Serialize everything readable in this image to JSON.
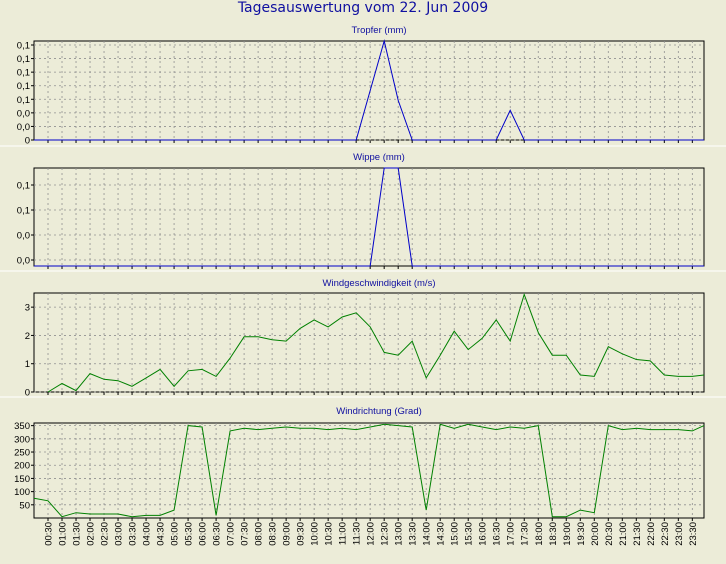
{
  "page": {
    "title": "Tagesauswertung vom 22. Jun 2009",
    "colors": {
      "background": "#ececd8",
      "title": "#1010a0",
      "rain": "#0000c8",
      "wind": "#008000"
    }
  },
  "chart_data": [
    {
      "type": "line",
      "title": "Tropfer (mm)",
      "ytick_labels": [
        "0,1",
        "0,1",
        "0,1",
        "0,1",
        "0,1",
        "0,0",
        "0,0",
        "0"
      ],
      "ylim": [
        0,
        7
      ],
      "grid": true,
      "x_ticks": [
        "00:30",
        "01:00",
        "01:30",
        "02:00",
        "02:30",
        "03:00",
        "03:30",
        "04:00",
        "04:30",
        "05:00",
        "05:30",
        "06:00",
        "06:30",
        "07:00",
        "07:30",
        "08:00",
        "08:30",
        "09:00",
        "09:30",
        "10:00",
        "10:30",
        "11:00",
        "11:30",
        "12:00",
        "12:30",
        "13:00",
        "13:30",
        "14:00",
        "14:30",
        "15:00",
        "15:30",
        "16:00",
        "16:30",
        "17:00",
        "17:30",
        "18:00",
        "18:30",
        "19:00",
        "19:30",
        "20:00",
        "20:30",
        "21:00",
        "21:30",
        "22:00",
        "22:30",
        "23:00",
        "23:30"
      ],
      "series": [
        {
          "color": "#0000c8",
          "x": [
            "00:00",
            "11:30",
            "12:00",
            "12:30",
            "13:00",
            "13:30",
            "16:30",
            "17:00",
            "17:30",
            "23:55"
          ],
          "y": [
            0,
            0,
            3.5,
            7,
            2.8,
            0,
            0,
            2.1,
            0,
            0
          ]
        }
      ]
    },
    {
      "type": "line",
      "title": "Wippe (mm)",
      "ytick_labels": [
        "0,1",
        "0,1",
        "0,0",
        "0,0"
      ],
      "ylim": [
        0,
        4.5
      ],
      "grid": true,
      "series": [
        {
          "color": "#0000c8",
          "x": [
            "00:00",
            "12:00",
            "12:30",
            "13:00",
            "13:30",
            "23:55"
          ],
          "y": [
            0,
            0,
            4.5,
            4.5,
            0,
            0
          ]
        }
      ]
    },
    {
      "type": "line",
      "title": "Windgeschwindigkeit (m/s)",
      "ytick_labels": [
        "3",
        "2",
        "1",
        "0"
      ],
      "ylim": [
        0,
        3.5
      ],
      "grid": true,
      "series": [
        {
          "color": "#008000",
          "x": [
            "00:30",
            "01:00",
            "01:30",
            "02:00",
            "02:30",
            "03:00",
            "03:30",
            "04:00",
            "04:30",
            "05:00",
            "05:30",
            "06:00",
            "06:30",
            "07:00",
            "07:30",
            "08:00",
            "08:30",
            "09:00",
            "09:30",
            "10:00",
            "10:30",
            "11:00",
            "11:30",
            "12:00",
            "12:30",
            "13:00",
            "13:30",
            "14:00",
            "14:30",
            "15:00",
            "15:30",
            "16:00",
            "16:30",
            "17:00",
            "17:30",
            "18:00",
            "18:30",
            "19:00",
            "19:30",
            "20:00",
            "20:30",
            "21:00",
            "21:30",
            "22:00",
            "22:30",
            "23:00",
            "23:30",
            "23:55"
          ],
          "y": [
            0,
            0.3,
            0.05,
            0.65,
            0.45,
            0.4,
            0.2,
            0.5,
            0.8,
            0.2,
            0.75,
            0.8,
            0.55,
            1.2,
            1.95,
            1.95,
            1.85,
            1.8,
            2.25,
            2.55,
            2.3,
            2.65,
            2.8,
            2.3,
            1.4,
            1.3,
            1.8,
            0.5,
            1.3,
            2.15,
            1.5,
            1.9,
            2.55,
            1.8,
            3.45,
            2.1,
            1.3,
            1.3,
            0.6,
            0.55,
            1.6,
            1.35,
            1.15,
            1.1,
            0.6,
            0.55,
            0.55,
            0.6
          ]
        }
      ]
    },
    {
      "type": "line",
      "title": "Windrichtung (Grad)",
      "ytick_labels": [
        "350",
        "300",
        "250",
        "200",
        "150",
        "100",
        "50"
      ],
      "ylim": [
        0,
        360
      ],
      "grid": true,
      "series": [
        {
          "color": "#008000",
          "x": [
            "00:00",
            "00:30",
            "01:00",
            "01:30",
            "02:00",
            "02:30",
            "03:00",
            "03:30",
            "04:00",
            "04:30",
            "05:00",
            "05:30",
            "06:00",
            "06:30",
            "07:00",
            "07:30",
            "08:00",
            "08:30",
            "09:00",
            "09:30",
            "10:00",
            "10:30",
            "11:00",
            "11:30",
            "12:00",
            "12:30",
            "13:00",
            "13:30",
            "14:00",
            "14:30",
            "15:00",
            "15:30",
            "16:00",
            "16:30",
            "17:00",
            "17:30",
            "18:00",
            "18:30",
            "19:00",
            "19:30",
            "20:00",
            "20:30",
            "21:00",
            "21:30",
            "22:00",
            "22:30",
            "23:00",
            "23:30",
            "23:55"
          ],
          "y": [
            75,
            65,
            5,
            20,
            15,
            15,
            15,
            5,
            10,
            10,
            30,
            350,
            345,
            10,
            330,
            340,
            335,
            340,
            345,
            340,
            340,
            335,
            340,
            335,
            345,
            355,
            350,
            345,
            30,
            355,
            340,
            355,
            345,
            335,
            345,
            340,
            350,
            5,
            5,
            30,
            20,
            350,
            335,
            340,
            335,
            335,
            335,
            330,
            350
          ]
        }
      ]
    }
  ]
}
